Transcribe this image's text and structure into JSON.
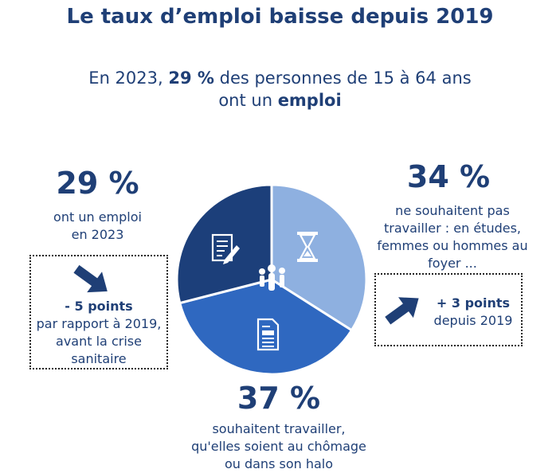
{
  "title": "Le taux d’emploi baisse depuis 2019",
  "subtitle": {
    "pre": "En 2023, ",
    "value": "29 %",
    "mid": " des personnes de 15 à 64 ans",
    "line2_pre": "ont un ",
    "line2_bold": "emploi"
  },
  "left": {
    "pct": "29 %",
    "caption_l1": "ont un emploi",
    "caption_l2": "en 2023",
    "box": {
      "points": "- 5 points",
      "line1": "par rapport à 2019,",
      "line2": "avant la crise",
      "line3": "sanitaire"
    }
  },
  "right": {
    "pct": "34 %",
    "caption_l1": "ne souhaitent pas",
    "caption_l2": "travailler : en études,",
    "caption_l3": "femmes ou hommes au",
    "caption_l4": "foyer ...",
    "box": {
      "points": "+ 3 points",
      "line1": "depuis 2019"
    }
  },
  "bottom": {
    "pct": "37 %",
    "caption_l1": "souhaitent travailler,",
    "caption_l2": "qu'elles soient au chômage",
    "caption_l3": "ou dans son halo"
  },
  "chart_data": {
    "type": "pie",
    "title": "Le taux d’emploi baisse depuis 2019",
    "slices": [
      {
        "label": "ne souhaitent pas travailler",
        "value": 34,
        "color": "#8eb0e0",
        "icon": "hourglass-icon"
      },
      {
        "label": "souhaitent travailler",
        "value": 37,
        "color": "#2f68c0",
        "icon": "newspaper-icon"
      },
      {
        "label": "ont un emploi",
        "value": 29,
        "color": "#1c3f7a",
        "icon": "document-pen-icon"
      }
    ]
  }
}
